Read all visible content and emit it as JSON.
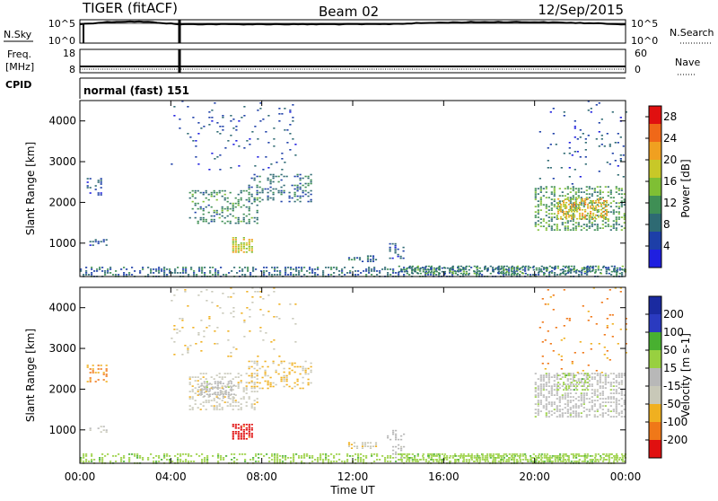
{
  "header": {
    "radar": "TIGER (fitACF)",
    "beam": "Beam 02",
    "date": "12/Sep/2015"
  },
  "top_panels": {
    "nsky_label": "N.Sky",
    "nsky_ticks": [
      "10^5",
      "10^0"
    ],
    "nsearch_label": "N.Search",
    "nsearch_ticks": [
      "10^5",
      "10^0"
    ],
    "freq_label_1": "Freq.",
    "freq_label_2": "[MHz]",
    "freq_ticks": [
      "18",
      "8"
    ],
    "nave_label": "Nave",
    "nave_ticks": [
      "60",
      "0"
    ],
    "cpid_label": "CPID",
    "cpid_text": "normal (fast) 151"
  },
  "x_axis": {
    "label": "Time UT",
    "ticks": [
      "00:00",
      "04:00",
      "08:00",
      "12:00",
      "16:00",
      "20:00",
      "00:00"
    ]
  },
  "colors": {
    "power": [
      "#1f1fe0",
      "#1d3fa8",
      "#2e6a73",
      "#3f8f55",
      "#7fbf34",
      "#c8c828",
      "#f0a020",
      "#f06818",
      "#e01010"
    ],
    "velocity": [
      "#e01010",
      "#f07818",
      "#f0b020",
      "#c8c8b8",
      "#b8b8b8",
      "#98d040",
      "#48b030",
      "#2a3ac0",
      "#1a2aa0"
    ]
  },
  "chart_data": [
    {
      "type": "heatmap",
      "quantity": "power",
      "ylabel": "Slant Range [km]",
      "xlabel": "",
      "y_ticks": [
        "1000",
        "2000",
        "3000",
        "4000"
      ],
      "ylim": [
        180,
        4500
      ],
      "xlim": [
        0,
        24
      ],
      "colorbar_label": "Power [dB]",
      "colorbar_ticks": [
        "4",
        "8",
        "12",
        "16",
        "20",
        "24",
        "28"
      ],
      "colorbar_range": [
        0,
        30
      ],
      "regions": [
        {
          "t0": 0.0,
          "t1": 24.0,
          "r0": 180,
          "r1": 420,
          "density": 0.45,
          "value": 8
        },
        {
          "t0": 0.3,
          "t1": 1.2,
          "r0": 950,
          "r1": 1100,
          "density": 0.3,
          "value": 6
        },
        {
          "t0": 0.3,
          "t1": 1.0,
          "r0": 2200,
          "r1": 2600,
          "density": 0.25,
          "value": 6
        },
        {
          "t0": 4.8,
          "t1": 7.8,
          "r0": 1500,
          "r1": 2300,
          "density": 0.35,
          "value": 10
        },
        {
          "t0": 7.4,
          "t1": 10.2,
          "r0": 2000,
          "r1": 2700,
          "density": 0.3,
          "value": 8
        },
        {
          "t0": 6.7,
          "t1": 7.6,
          "r0": 780,
          "r1": 1150,
          "density": 0.7,
          "value": 18
        },
        {
          "t0": 4.0,
          "t1": 9.5,
          "r0": 2800,
          "r1": 4500,
          "density": 0.05,
          "value": 6
        },
        {
          "t0": 11.8,
          "t1": 13.0,
          "r0": 550,
          "r1": 700,
          "density": 0.6,
          "value": 8
        },
        {
          "t0": 13.6,
          "t1": 14.3,
          "r0": 620,
          "r1": 1000,
          "density": 0.3,
          "value": 6
        },
        {
          "t0": 14.0,
          "t1": 24.0,
          "r0": 250,
          "r1": 450,
          "density": 0.5,
          "value": 10
        },
        {
          "t0": 20.0,
          "t1": 24.0,
          "r0": 1300,
          "r1": 2400,
          "density": 0.4,
          "value": 12
        },
        {
          "t0": 21.0,
          "t1": 23.2,
          "r0": 1600,
          "r1": 2100,
          "density": 0.65,
          "value": 20
        },
        {
          "t0": 20.2,
          "t1": 24.0,
          "r0": 2400,
          "r1": 4500,
          "density": 0.04,
          "value": 6
        }
      ]
    },
    {
      "type": "heatmap",
      "quantity": "velocity",
      "ylabel": "Slant Range [km]",
      "xlabel": "Time UT",
      "y_ticks": [
        "1000",
        "2000",
        "3000",
        "4000"
      ],
      "ylim": [
        180,
        4500
      ],
      "xlim": [
        0,
        24
      ],
      "colorbar_label": "Velocity [m s-1]",
      "colorbar_ticks": [
        "200",
        "100",
        "50",
        "15",
        "-15",
        "-50",
        "-100",
        "-200"
      ],
      "colorbar_range": [
        -250,
        250
      ],
      "regions": [
        {
          "t0": 0.0,
          "t1": 24.0,
          "r0": 180,
          "r1": 420,
          "density": 0.4,
          "value": 60
        },
        {
          "t0": 0.3,
          "t1": 1.2,
          "r0": 2200,
          "r1": 2600,
          "density": 0.3,
          "value": -150
        },
        {
          "t0": 0.3,
          "t1": 1.2,
          "r0": 900,
          "r1": 1100,
          "density": 0.2,
          "value": -40
        },
        {
          "t0": 4.8,
          "t1": 7.8,
          "r0": 1500,
          "r1": 2400,
          "density": 0.35,
          "value": -60
        },
        {
          "t0": 5.2,
          "t1": 6.8,
          "r0": 1800,
          "r1": 2200,
          "density": 0.5,
          "value": 0
        },
        {
          "t0": 7.4,
          "t1": 10.2,
          "r0": 2000,
          "r1": 2700,
          "density": 0.3,
          "value": -90
        },
        {
          "t0": 6.7,
          "t1": 7.6,
          "r0": 780,
          "r1": 1150,
          "density": 0.75,
          "value": -220
        },
        {
          "t0": 4.0,
          "t1": 9.5,
          "r0": 2800,
          "r1": 4500,
          "density": 0.05,
          "value": -80
        },
        {
          "t0": 11.8,
          "t1": 13.0,
          "r0": 550,
          "r1": 700,
          "density": 0.6,
          "value": -70
        },
        {
          "t0": 13.5,
          "t1": 14.3,
          "r0": 300,
          "r1": 1000,
          "density": 0.25,
          "value": 0
        },
        {
          "t0": 14.0,
          "t1": 24.0,
          "r0": 220,
          "r1": 420,
          "density": 0.55,
          "value": 60
        },
        {
          "t0": 20.0,
          "t1": 24.0,
          "r0": 1300,
          "r1": 2400,
          "density": 0.5,
          "value": 0
        },
        {
          "t0": 21.0,
          "t1": 22.4,
          "r0": 2000,
          "r1": 2400,
          "density": 0.3,
          "value": 60
        },
        {
          "t0": 20.2,
          "t1": 24.0,
          "r0": 2400,
          "r1": 4500,
          "density": 0.05,
          "value": -150
        }
      ]
    }
  ]
}
